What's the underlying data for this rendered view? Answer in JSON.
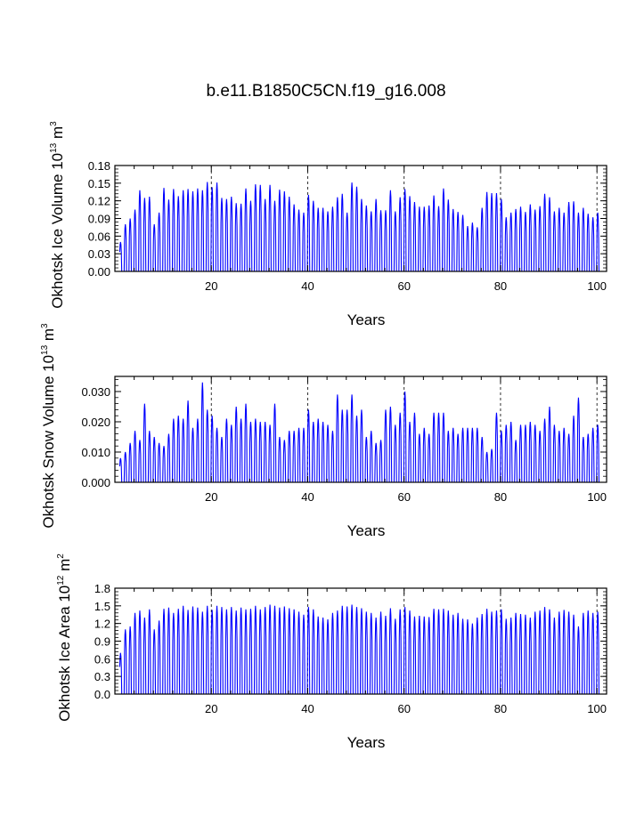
{
  "title": "b.e11.B1850C5CN.f19_g16.008",
  "colors": {
    "series": "#0000ff",
    "axes": "#000000",
    "grid": "#000000"
  },
  "chart_data": [
    {
      "type": "line",
      "ylabel": "Okhotsk Ice Volume 10",
      "ylabel_exp": "13",
      "ylabel_unit": " m",
      "ylabel_unit_exp": "3",
      "xlabel": "Years",
      "xlim": [
        0,
        102
      ],
      "ylim": [
        0.0,
        0.18
      ],
      "xticks": [
        20,
        40,
        60,
        80,
        100
      ],
      "yticks": [
        "0.00",
        "0.03",
        "0.06",
        "0.09",
        "0.12",
        "0.15",
        "0.18"
      ],
      "ytick_values": [
        0.0,
        0.03,
        0.06,
        0.09,
        0.12,
        0.15,
        0.18
      ],
      "grid": "dashed vertical lines at 20, 40, 60, 80, 100",
      "seasonal_min": 0.0,
      "annual_max": [
        0.05,
        0.08,
        0.09,
        0.105,
        0.138,
        0.125,
        0.127,
        0.08,
        0.1,
        0.142,
        0.122,
        0.14,
        0.128,
        0.138,
        0.14,
        0.136,
        0.141,
        0.138,
        0.152,
        0.143,
        0.151,
        0.125,
        0.123,
        0.127,
        0.116,
        0.115,
        0.141,
        0.12,
        0.148,
        0.147,
        0.123,
        0.147,
        0.12,
        0.139,
        0.136,
        0.127,
        0.114,
        0.105,
        0.1,
        0.13,
        0.12,
        0.108,
        0.108,
        0.102,
        0.11,
        0.126,
        0.132,
        0.1,
        0.151,
        0.144,
        0.123,
        0.112,
        0.102,
        0.123,
        0.104,
        0.104,
        0.138,
        0.102,
        0.126,
        0.14,
        0.128,
        0.118,
        0.11,
        0.11,
        0.112,
        0.129,
        0.111,
        0.141,
        0.122,
        0.106,
        0.101,
        0.096,
        0.077,
        0.083,
        0.075,
        0.108,
        0.135,
        0.133,
        0.133,
        0.123,
        0.092,
        0.1,
        0.106,
        0.11,
        0.101,
        0.114,
        0.105,
        0.111,
        0.132,
        0.126,
        0.102,
        0.108,
        0.1,
        0.118,
        0.119,
        0.1,
        0.108,
        0.098,
        0.092,
        0.1
      ]
    },
    {
      "type": "line",
      "ylabel": "Okhotsk Snow Volume 10",
      "ylabel_exp": "13",
      "ylabel_unit": " m",
      "ylabel_unit_exp": "3",
      "xlabel": "Years",
      "xlim": [
        0,
        102
      ],
      "ylim": [
        0.0,
        0.035
      ],
      "xticks": [
        20,
        40,
        60,
        80,
        100
      ],
      "yticks": [
        "0.000",
        "0.010",
        "0.020",
        "0.030"
      ],
      "ytick_values": [
        0.0,
        0.01,
        0.02,
        0.03
      ],
      "grid": "dashed vertical lines at 20, 40, 60, 80, 100",
      "seasonal_min": 0.0,
      "annual_max": [
        0.008,
        0.01,
        0.013,
        0.017,
        0.014,
        0.026,
        0.017,
        0.015,
        0.013,
        0.012,
        0.016,
        0.021,
        0.022,
        0.021,
        0.027,
        0.018,
        0.021,
        0.033,
        0.024,
        0.022,
        0.018,
        0.015,
        0.021,
        0.019,
        0.025,
        0.021,
        0.026,
        0.02,
        0.021,
        0.02,
        0.02,
        0.019,
        0.026,
        0.015,
        0.014,
        0.017,
        0.017,
        0.018,
        0.018,
        0.024,
        0.02,
        0.021,
        0.02,
        0.019,
        0.017,
        0.029,
        0.024,
        0.024,
        0.029,
        0.022,
        0.024,
        0.015,
        0.017,
        0.013,
        0.014,
        0.024,
        0.025,
        0.019,
        0.023,
        0.03,
        0.02,
        0.023,
        0.016,
        0.018,
        0.016,
        0.023,
        0.023,
        0.023,
        0.017,
        0.018,
        0.016,
        0.018,
        0.018,
        0.018,
        0.018,
        0.015,
        0.01,
        0.011,
        0.023,
        0.017,
        0.019,
        0.02,
        0.014,
        0.019,
        0.019,
        0.02,
        0.019,
        0.017,
        0.021,
        0.025,
        0.019,
        0.017,
        0.018,
        0.016,
        0.022,
        0.028,
        0.015,
        0.016,
        0.018,
        0.019
      ]
    },
    {
      "type": "line",
      "ylabel": "Okhotsk Ice Area 10",
      "ylabel_exp": "12",
      "ylabel_unit": " m",
      "ylabel_unit_exp": "2",
      "xlabel": "Years",
      "xlim": [
        0,
        102
      ],
      "ylim": [
        0.0,
        1.8
      ],
      "xticks": [
        20,
        40,
        60,
        80,
        100
      ],
      "yticks": [
        "0.0",
        "0.3",
        "0.6",
        "0.9",
        "1.2",
        "1.5",
        "1.8"
      ],
      "ytick_values": [
        0.0,
        0.3,
        0.6,
        0.9,
        1.2,
        1.5,
        1.8
      ],
      "grid": "dashed vertical lines at 20, 40, 60, 80, 100",
      "seasonal_min": 0.0,
      "annual_max": [
        0.7,
        1.1,
        1.15,
        1.38,
        1.42,
        1.3,
        1.44,
        1.1,
        1.25,
        1.45,
        1.47,
        1.38,
        1.45,
        1.5,
        1.43,
        1.49,
        1.47,
        1.4,
        1.5,
        1.43,
        1.5,
        1.48,
        1.44,
        1.48,
        1.42,
        1.47,
        1.44,
        1.45,
        1.5,
        1.44,
        1.48,
        1.52,
        1.5,
        1.47,
        1.49,
        1.46,
        1.44,
        1.4,
        1.35,
        1.48,
        1.44,
        1.32,
        1.3,
        1.27,
        1.38,
        1.42,
        1.5,
        1.49,
        1.52,
        1.48,
        1.46,
        1.4,
        1.38,
        1.3,
        1.4,
        1.33,
        1.46,
        1.28,
        1.44,
        1.48,
        1.42,
        1.32,
        1.33,
        1.32,
        1.31,
        1.45,
        1.44,
        1.45,
        1.42,
        1.35,
        1.38,
        1.28,
        1.27,
        1.2,
        1.3,
        1.36,
        1.45,
        1.4,
        1.42,
        1.44,
        1.28,
        1.3,
        1.38,
        1.36,
        1.35,
        1.3,
        1.4,
        1.42,
        1.48,
        1.44,
        1.3,
        1.4,
        1.43,
        1.4,
        1.35,
        1.15,
        1.38,
        1.42,
        1.38,
        1.4
      ]
    }
  ]
}
